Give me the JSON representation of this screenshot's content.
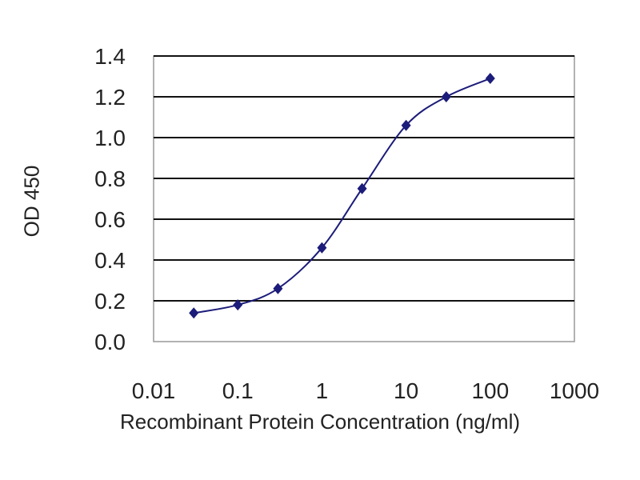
{
  "chart_data": {
    "type": "line",
    "title": "",
    "xlabel": "Recombinant Protein Concentration (ng/ml)",
    "ylabel": "OD 450",
    "xscale": "log",
    "xlim": [
      0.01,
      1000
    ],
    "ylim": [
      0.0,
      1.4
    ],
    "xticks": [
      "0.01",
      "0.1",
      "1",
      "10",
      "100",
      "1000"
    ],
    "xtick_values": [
      0.01,
      0.1,
      1,
      10,
      100,
      1000
    ],
    "yticks": [
      "0.0",
      "0.2",
      "0.4",
      "0.6",
      "0.8",
      "1.0",
      "1.2",
      "1.4"
    ],
    "ytick_values": [
      0,
      0.2,
      0.4,
      0.6,
      0.8,
      1.0,
      1.2,
      1.4
    ],
    "grid": "horizontal",
    "legend": "none",
    "series": [
      {
        "x": [
          0.03,
          0.1,
          0.3,
          1,
          3,
          10,
          30,
          100
        ],
        "y": [
          0.14,
          0.18,
          0.26,
          0.46,
          0.75,
          1.06,
          1.2,
          1.29
        ],
        "color": "#1c1c7a",
        "marker": "diamond"
      }
    ]
  }
}
